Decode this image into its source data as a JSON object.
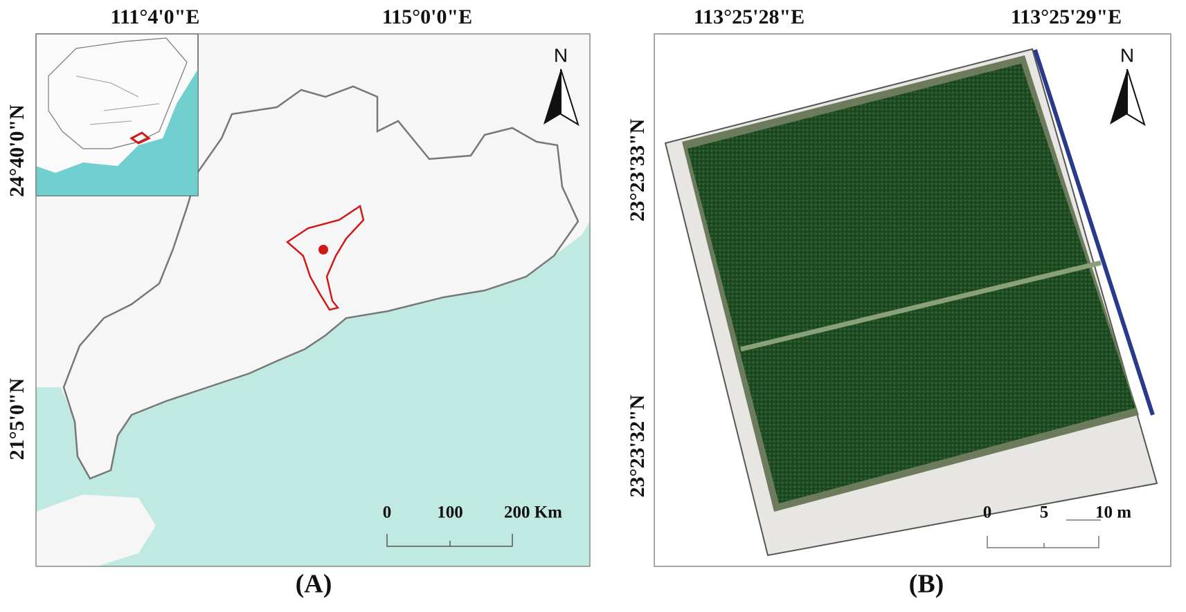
{
  "panels": [
    {
      "label": "(A)",
      "top_labels": [
        "111°4'0\"E",
        "115°0'0\"E"
      ],
      "left_labels": [
        "24°40'0\"N",
        "21°5'0\"N"
      ],
      "scale_labels": [
        "0",
        "100",
        "200 Km"
      ],
      "north": "N"
    },
    {
      "label": "(B)",
      "top_labels": [
        "113°25'28\"E",
        "113°25'29\"E"
      ],
      "left_labels": [
        "23°23'33\"N",
        "23°23'32\"N"
      ],
      "scale_labels": [
        "0",
        "5",
        "10 m"
      ],
      "north": "N"
    }
  ]
}
